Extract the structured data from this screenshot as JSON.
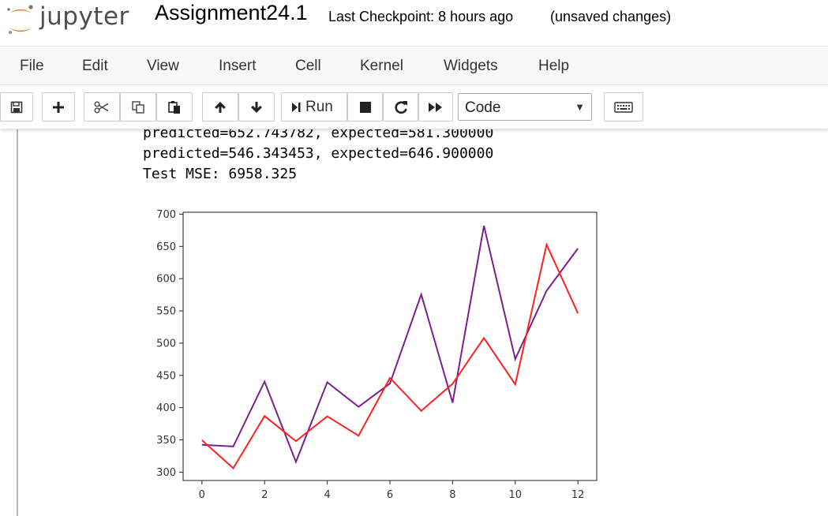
{
  "header": {
    "logo_text": "jupyter",
    "notebook_title": "Assignment24.1",
    "checkpoint": "Last Checkpoint: 8 hours ago",
    "save_status": "(unsaved changes)"
  },
  "menubar": {
    "items": [
      "File",
      "Edit",
      "View",
      "Insert",
      "Cell",
      "Kernel",
      "Widgets",
      "Help"
    ]
  },
  "toolbar": {
    "save_icon": "save-icon",
    "add_icon": "plus-icon",
    "cut_icon": "scissors-icon",
    "copy_icon": "copy-icon",
    "paste_icon": "paste-icon",
    "move_up_icon": "arrow-up-icon",
    "move_down_icon": "arrow-down-icon",
    "run_label": "Run",
    "stop_icon": "stop-icon",
    "restart_icon": "restart-icon",
    "fast_forward_icon": "fast-forward-icon",
    "cell_type": "Code",
    "keyboard_icon": "keyboard-icon"
  },
  "output": {
    "lines": [
      "predicted=652.743782, expected=581.300000",
      "predicted=546.343453, expected=646.900000",
      "Test MSE: 6958.325"
    ]
  },
  "chart_data": {
    "type": "line",
    "title": "",
    "xlabel": "",
    "ylabel": "",
    "x": [
      0,
      1,
      2,
      3,
      4,
      5,
      6,
      7,
      8,
      9,
      10,
      11,
      12
    ],
    "xlim": [
      -0.6,
      12.6
    ],
    "ylim": [
      287,
      703
    ],
    "xticks": [
      0,
      2,
      4,
      6,
      8,
      10,
      12
    ],
    "yticks": [
      300,
      350,
      400,
      450,
      500,
      550,
      600,
      650,
      700
    ],
    "grid": false,
    "series": [
      {
        "color": "#7b1f8c",
        "values": [
          342.3,
          339.7,
          440.4,
          315.9,
          439.3,
          401.3,
          437.4,
          575.5,
          407.6,
          682.0,
          475.3,
          581.3,
          646.9
        ]
      },
      {
        "color": "#ff2020",
        "values": [
          349.5,
          306.0,
          387.0,
          348.0,
          386.5,
          356.5,
          446.0,
          395.0,
          437.0,
          508.0,
          436.0,
          652.7,
          546.3
        ]
      }
    ]
  }
}
